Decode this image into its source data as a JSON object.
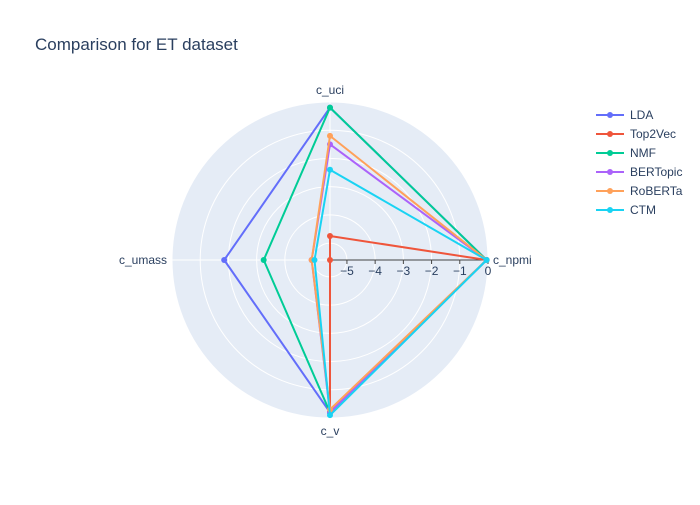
{
  "chart_data": {
    "type": "radar",
    "title": "Comparison for ET dataset",
    "axes": [
      "c_npmi",
      "c_uci",
      "c_umass",
      "c_v"
    ],
    "radial_range": [
      -5.6,
      0
    ],
    "radial_ticks": [
      -5,
      -4,
      -3,
      -2,
      -1,
      0
    ],
    "radial_tick_labels": [
      "−5",
      "−4",
      "−3",
      "−2",
      "−1",
      "0"
    ],
    "legend_position": "top-right",
    "grid": true,
    "series": [
      {
        "name": "LDA",
        "color": "#636efa",
        "values": [
          -0.05,
          -0.2,
          -1.85,
          -0.2
        ]
      },
      {
        "name": "Top2Vec",
        "color": "#ef553b",
        "values": [
          -0.05,
          -4.75,
          -5.6,
          -0.2
        ]
      },
      {
        "name": "NMF",
        "color": "#00cc96",
        "values": [
          -0.05,
          -0.2,
          -3.25,
          -0.2
        ]
      },
      {
        "name": "BERTopic",
        "color": "#ab63fa",
        "values": [
          -0.05,
          -1.5,
          -4.95,
          -0.2
        ]
      },
      {
        "name": "RoBERTa",
        "color": "#ffa15a",
        "values": [
          -0.05,
          -1.2,
          -4.95,
          -0.3
        ]
      },
      {
        "name": "CTM",
        "color": "#19d3f3",
        "values": [
          -0.05,
          -2.4,
          -5.05,
          -0.1
        ]
      }
    ]
  }
}
